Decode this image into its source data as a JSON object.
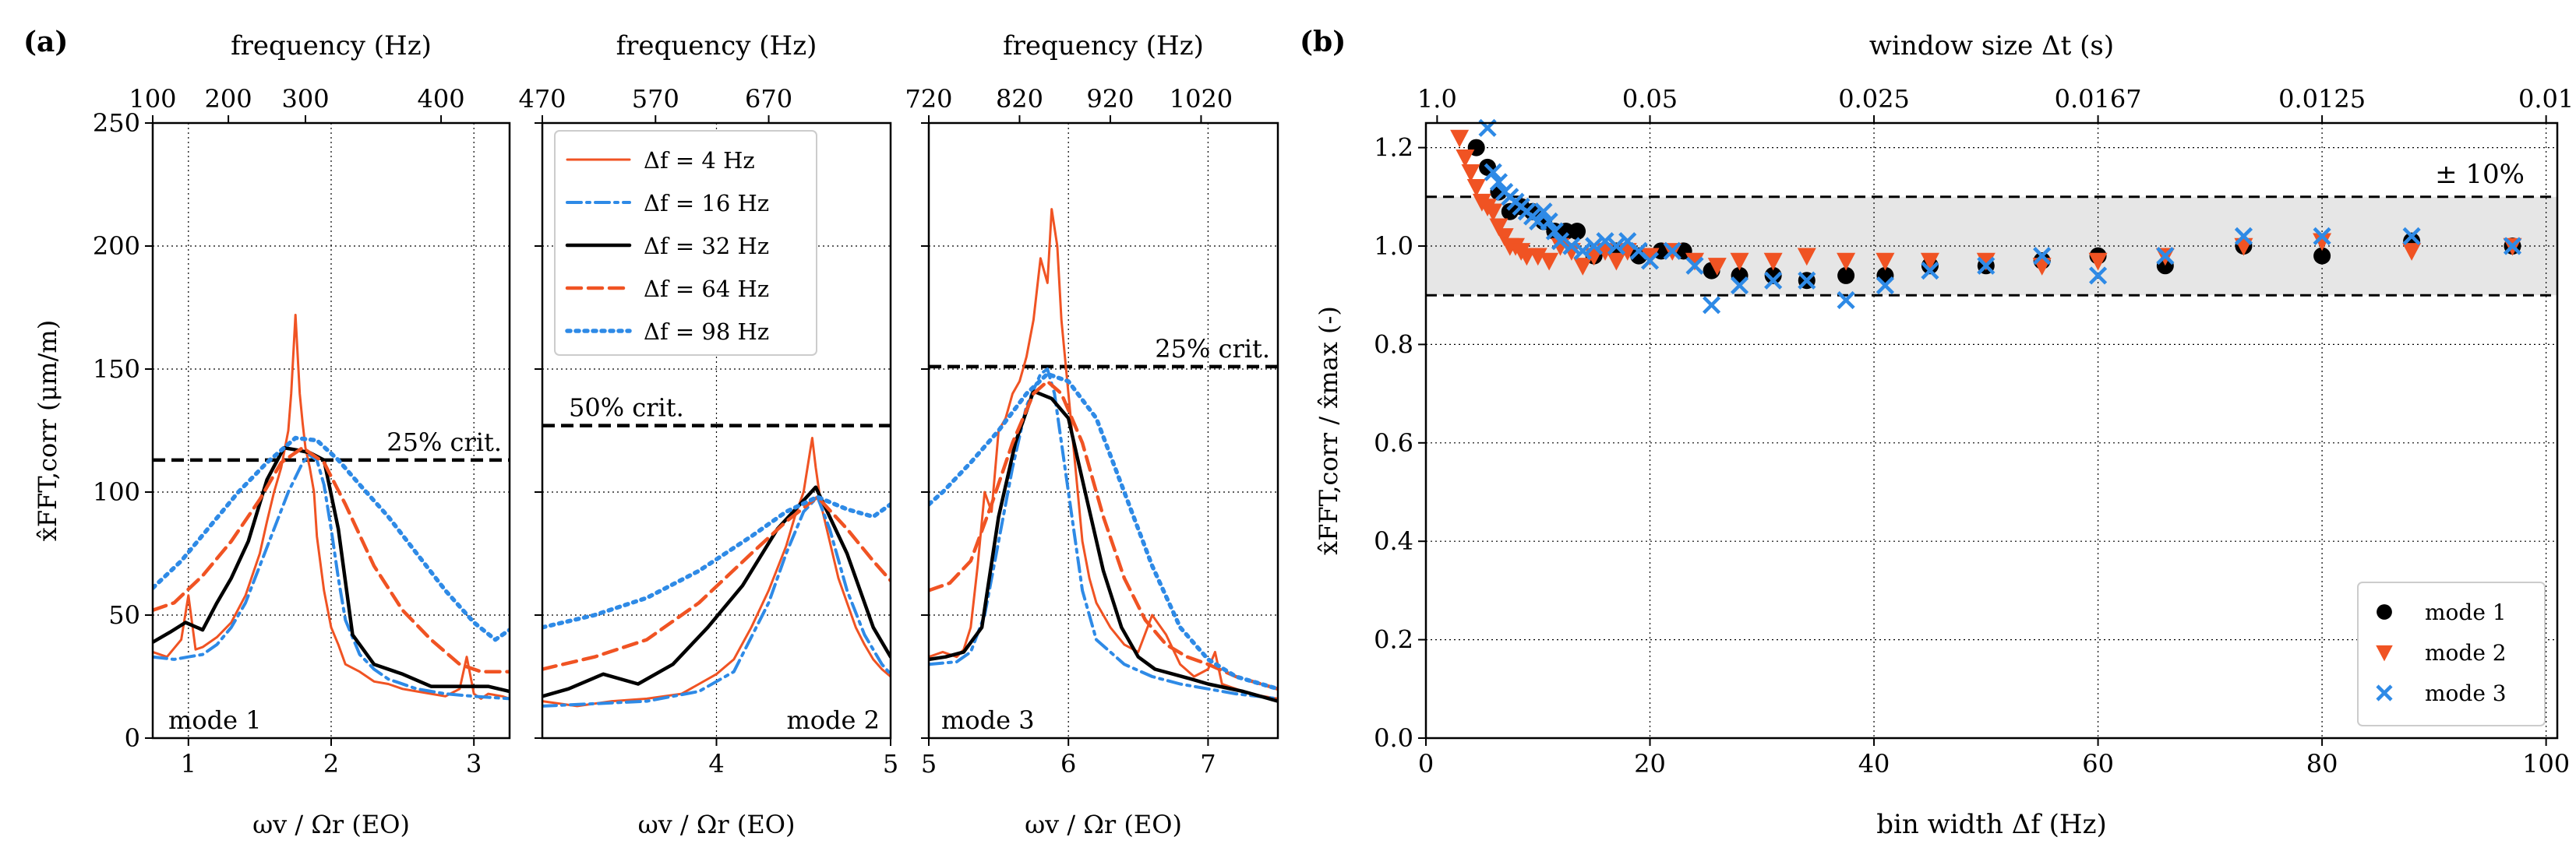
{
  "colors": {
    "black": "#000000",
    "orange": "#f05323",
    "blue": "#2e8ae6",
    "band": "#e6e6e6"
  },
  "panel_labels": {
    "a": "(a)",
    "b": "(b)"
  },
  "chart_data": [
    {
      "id": "mode1",
      "type": "line",
      "top_axis_label": "frequency (Hz)",
      "top_ticks": [
        {
          "label": "100",
          "x": 0.75
        },
        {
          "label": "200",
          "x": 1.28
        },
        {
          "label": "300",
          "x": 1.82
        },
        {
          "label": "400",
          "x": 2.77
        }
      ],
      "xlabel": "ωv / Ωr (EO)",
      "ylabel": "x̂FFT,corr (μm/m)",
      "xlim": [
        0.75,
        3.25
      ],
      "ylim": [
        0,
        250
      ],
      "xticks": [
        1,
        2,
        3
      ],
      "yticks": [
        0,
        50,
        100,
        150,
        200,
        250
      ],
      "grid": true,
      "threshold": {
        "y": 113,
        "label": "25% crit."
      },
      "mode_label": "mode 1",
      "series": [
        {
          "name": "Δf = 4 Hz",
          "style": "orange-solid",
          "x": [
            0.75,
            0.85,
            0.95,
            1.0,
            1.05,
            1.1,
            1.2,
            1.3,
            1.4,
            1.5,
            1.55,
            1.6,
            1.65,
            1.7,
            1.72,
            1.75,
            1.78,
            1.8,
            1.82,
            1.85,
            1.88,
            1.9,
            1.95,
            2.0,
            2.05,
            2.1,
            2.2,
            2.3,
            2.4,
            2.5,
            2.6,
            2.7,
            2.8,
            2.9,
            2.95,
            3.0,
            3.05,
            3.1,
            3.2,
            3.25
          ],
          "y": [
            35,
            33,
            40,
            58,
            36,
            37,
            41,
            47,
            58,
            75,
            88,
            100,
            110,
            125,
            140,
            172,
            140,
            128,
            118,
            110,
            100,
            82,
            60,
            45,
            38,
            30,
            27,
            23,
            22,
            20,
            19,
            18,
            17,
            20,
            33,
            18,
            16,
            18,
            17,
            16
          ]
        },
        {
          "name": "Δf = 16 Hz",
          "style": "blue-dashdot",
          "x": [
            0.75,
            0.9,
            1.0,
            1.1,
            1.2,
            1.3,
            1.4,
            1.5,
            1.6,
            1.7,
            1.8,
            1.85,
            1.9,
            1.95,
            2.0,
            2.05,
            2.1,
            2.2,
            2.3,
            2.4,
            2.6,
            2.8,
            3.0,
            3.25
          ],
          "y": [
            33,
            32,
            33,
            34,
            38,
            45,
            55,
            70,
            85,
            100,
            112,
            115,
            113,
            103,
            85,
            65,
            48,
            34,
            28,
            24,
            20,
            18,
            17,
            16
          ]
        },
        {
          "name": "Δf = 32 Hz",
          "style": "black-solid",
          "x": [
            0.75,
            0.87,
            0.98,
            1.1,
            1.2,
            1.3,
            1.42,
            1.55,
            1.67,
            1.77,
            1.85,
            1.95,
            2.05,
            2.15,
            2.3,
            2.5,
            2.7,
            2.9,
            3.1,
            3.25
          ],
          "y": [
            39,
            43,
            47,
            44,
            55,
            65,
            80,
            105,
            118,
            117,
            116,
            113,
            85,
            42,
            30,
            26,
            21,
            21,
            21,
            19
          ]
        },
        {
          "name": "Δf = 64 Hz",
          "style": "orange-dashed",
          "x": [
            0.75,
            0.9,
            1.1,
            1.3,
            1.5,
            1.65,
            1.8,
            1.95,
            2.1,
            2.3,
            2.5,
            2.7,
            2.9,
            3.05,
            3.25
          ],
          "y": [
            52,
            55,
            66,
            80,
            97,
            112,
            118,
            112,
            95,
            70,
            52,
            40,
            30,
            27,
            27
          ]
        },
        {
          "name": "Δf = 98 Hz",
          "style": "blue-dotted",
          "x": [
            0.75,
            0.95,
            1.15,
            1.35,
            1.55,
            1.75,
            1.9,
            2.05,
            2.2,
            2.4,
            2.6,
            2.8,
            3.0,
            3.15,
            3.25
          ],
          "y": [
            61,
            72,
            86,
            100,
            112,
            122,
            121,
            113,
            103,
            90,
            75,
            60,
            47,
            40,
            44
          ]
        }
      ]
    },
    {
      "id": "mode2",
      "type": "line",
      "top_axis_label": "frequency (Hz)",
      "top_ticks": [
        {
          "label": "470",
          "x": 3.0
        },
        {
          "label": "570",
          "x": 3.65
        },
        {
          "label": "670",
          "x": 4.3
        }
      ],
      "xlabel": "ωv / Ωr (EO)",
      "xlim": [
        3.0,
        5.0
      ],
      "ylim": [
        0,
        250
      ],
      "xticks": [
        4,
        5
      ],
      "grid": true,
      "threshold": {
        "y": 127,
        "label": "50% crit."
      },
      "mode_label": "mode 2",
      "series": [
        {
          "name": "Δf = 4 Hz",
          "style": "orange-solid",
          "x": [
            3.0,
            3.2,
            3.4,
            3.6,
            3.8,
            3.9,
            4.0,
            4.1,
            4.2,
            4.3,
            4.4,
            4.45,
            4.5,
            4.55,
            4.57,
            4.6,
            4.65,
            4.7,
            4.75,
            4.8,
            4.85,
            4.9,
            4.95,
            5.0
          ],
          "y": [
            15,
            13,
            15,
            16,
            18,
            22,
            26,
            32,
            45,
            60,
            78,
            90,
            100,
            122,
            110,
            95,
            80,
            65,
            55,
            45,
            38,
            32,
            28,
            25
          ]
        },
        {
          "name": "Δf = 16 Hz",
          "style": "blue-dashdot",
          "x": [
            3.0,
            3.3,
            3.6,
            3.9,
            4.1,
            4.3,
            4.4,
            4.5,
            4.58,
            4.65,
            4.75,
            4.85,
            4.95,
            5.0
          ],
          "y": [
            13,
            14,
            15,
            19,
            27,
            55,
            75,
            92,
            98,
            85,
            60,
            42,
            30,
            26
          ]
        },
        {
          "name": "Δf = 32 Hz",
          "style": "black-solid",
          "x": [
            3.0,
            3.15,
            3.35,
            3.55,
            3.75,
            3.95,
            4.15,
            4.35,
            4.57,
            4.75,
            4.9,
            5.0
          ],
          "y": [
            17,
            20,
            26,
            22,
            30,
            45,
            62,
            85,
            102,
            75,
            45,
            33
          ]
        },
        {
          "name": "Δf = 64 Hz",
          "style": "orange-dashed",
          "x": [
            3.0,
            3.3,
            3.6,
            3.9,
            4.2,
            4.4,
            4.58,
            4.75,
            4.9,
            5.0
          ],
          "y": [
            28,
            33,
            40,
            55,
            75,
            88,
            98,
            85,
            72,
            64
          ]
        },
        {
          "name": "Δf = 98 Hz",
          "style": "blue-dotted",
          "x": [
            3.0,
            3.3,
            3.6,
            3.9,
            4.2,
            4.4,
            4.58,
            4.75,
            4.9,
            5.0
          ],
          "y": [
            45,
            50,
            57,
            68,
            82,
            92,
            98,
            93,
            90,
            95
          ]
        }
      ]
    },
    {
      "id": "mode3",
      "type": "line",
      "top_axis_label": "frequency (Hz)",
      "top_ticks": [
        {
          "label": "720",
          "x": 5.0
        },
        {
          "label": "820",
          "x": 5.65
        },
        {
          "label": "920",
          "x": 6.3
        },
        {
          "label": "1020",
          "x": 6.95
        }
      ],
      "xlabel": "ωv / Ωr (EO)",
      "xlim": [
        5.0,
        7.5
      ],
      "ylim": [
        0,
        250
      ],
      "xticks": [
        5,
        6,
        7
      ],
      "grid": true,
      "threshold": {
        "y": 151,
        "label": "25% crit."
      },
      "mode_label": "mode 3",
      "series": [
        {
          "name": "Δf = 4 Hz",
          "style": "orange-solid",
          "x": [
            5.0,
            5.1,
            5.2,
            5.25,
            5.3,
            5.35,
            5.4,
            5.45,
            5.5,
            5.55,
            5.6,
            5.65,
            5.7,
            5.75,
            5.8,
            5.85,
            5.88,
            5.92,
            5.95,
            6.0,
            6.05,
            6.1,
            6.15,
            6.2,
            6.3,
            6.4,
            6.5,
            6.6,
            6.7,
            6.8,
            6.9,
            7.0,
            7.05,
            7.1,
            7.2,
            7.3,
            7.4,
            7.5
          ],
          "y": [
            33,
            35,
            33,
            36,
            45,
            70,
            100,
            92,
            125,
            130,
            140,
            145,
            155,
            170,
            195,
            185,
            215,
            200,
            170,
            140,
            110,
            80,
            65,
            55,
            45,
            38,
            35,
            50,
            42,
            30,
            25,
            28,
            35,
            22,
            20,
            18,
            17,
            16
          ]
        },
        {
          "name": "Δf = 16 Hz",
          "style": "blue-dashdot",
          "x": [
            5.0,
            5.2,
            5.3,
            5.4,
            5.5,
            5.6,
            5.7,
            5.8,
            5.85,
            5.9,
            6.0,
            6.1,
            6.2,
            6.4,
            6.6,
            6.8,
            7.0,
            7.2,
            7.5
          ],
          "y": [
            30,
            31,
            35,
            50,
            80,
            110,
            135,
            148,
            150,
            140,
            100,
            60,
            40,
            30,
            25,
            22,
            20,
            18,
            16
          ]
        },
        {
          "name": "Δf = 32 Hz",
          "style": "black-solid",
          "x": [
            5.0,
            5.12,
            5.25,
            5.38,
            5.5,
            5.62,
            5.75,
            5.88,
            6.0,
            6.12,
            6.25,
            6.38,
            6.5,
            6.62,
            6.75,
            6.88,
            7.0,
            7.25,
            7.5
          ],
          "y": [
            32,
            33,
            35,
            45,
            90,
            120,
            141,
            138,
            130,
            100,
            68,
            45,
            33,
            28,
            26,
            24,
            22,
            19,
            15
          ]
        },
        {
          "name": "Δf = 64 Hz",
          "style": "orange-dashed",
          "x": [
            5.0,
            5.15,
            5.3,
            5.45,
            5.6,
            5.75,
            5.85,
            5.95,
            6.1,
            6.25,
            6.4,
            6.55,
            6.7,
            6.85,
            7.0,
            7.2,
            7.5
          ],
          "y": [
            60,
            63,
            72,
            95,
            120,
            140,
            145,
            140,
            120,
            90,
            65,
            48,
            38,
            33,
            30,
            25,
            20
          ]
        },
        {
          "name": "Δf = 98 Hz",
          "style": "blue-dotted",
          "x": [
            5.0,
            5.1,
            5.3,
            5.5,
            5.7,
            5.85,
            6.0,
            6.2,
            6.4,
            6.6,
            6.8,
            7.0,
            7.2,
            7.5
          ],
          "y": [
            95,
            100,
            112,
            125,
            140,
            148,
            145,
            130,
            100,
            70,
            45,
            32,
            25,
            20
          ]
        }
      ]
    },
    {
      "id": "convergence",
      "type": "scatter",
      "top_axis_label": "window size Δt (s)",
      "top_ticks": [
        {
          "label": "1.0",
          "x": 1
        },
        {
          "label": "0.05",
          "x": 20
        },
        {
          "label": "0.025",
          "x": 40
        },
        {
          "label": "0.0167",
          "x": 60
        },
        {
          "label": "0.0125",
          "x": 80
        },
        {
          "label": "0.01",
          "x": 100
        }
      ],
      "xlabel": "bin width Δf (Hz)",
      "ylabel": "x̂FFT,corr / x̂max (-)",
      "xlim": [
        0,
        101
      ],
      "ylim": [
        0,
        1.25
      ],
      "xticks": [
        0,
        20,
        40,
        60,
        80,
        100
      ],
      "yticks": [
        0.0,
        0.2,
        0.4,
        0.6,
        0.8,
        1.0,
        1.2
      ],
      "grid": true,
      "band": {
        "low": 0.9,
        "high": 1.1,
        "label": "± 10%"
      },
      "legend": "bottom-right",
      "series": [
        {
          "name": "mode 1",
          "marker": "circle",
          "x": [
            4.5,
            5.5,
            6.5,
            7.5,
            8.5,
            9.5,
            10.5,
            11.5,
            12.5,
            13.5,
            15,
            17,
            19,
            21,
            23,
            25.5,
            28,
            31,
            34,
            37.5,
            41,
            45,
            50,
            55,
            60,
            66,
            73,
            80,
            88,
            97
          ],
          "y": [
            1.2,
            1.16,
            1.11,
            1.07,
            1.08,
            1.07,
            1.05,
            1.03,
            1.03,
            1.03,
            0.98,
            0.99,
            0.98,
            0.99,
            0.99,
            0.95,
            0.94,
            0.94,
            0.93,
            0.94,
            0.94,
            0.96,
            0.96,
            0.97,
            0.98,
            0.96,
            1.0,
            0.98,
            1.01,
            1.0
          ]
        },
        {
          "name": "mode 2",
          "marker": "triangle-down",
          "x": [
            3,
            3.5,
            4,
            4.5,
            5,
            5.5,
            6,
            6.5,
            7,
            7.5,
            8,
            8.5,
            9,
            10,
            11,
            12,
            13,
            14,
            15,
            16,
            17,
            18,
            20,
            22,
            24,
            26,
            28,
            31,
            34,
            37.5,
            41,
            45,
            50,
            55,
            60,
            66,
            73,
            80,
            88,
            97
          ],
          "y": [
            1.22,
            1.18,
            1.15,
            1.12,
            1.09,
            1.08,
            1.07,
            1.04,
            1.02,
            1.0,
            1.0,
            0.99,
            0.98,
            0.98,
            0.97,
            1.0,
            0.99,
            0.96,
            0.98,
            0.99,
            0.97,
            0.99,
            0.98,
            0.99,
            0.97,
            0.96,
            0.97,
            0.97,
            0.98,
            0.97,
            0.97,
            0.97,
            0.97,
            0.96,
            0.97,
            0.98,
            1.0,
            1.01,
            0.99,
            1.0
          ]
        },
        {
          "name": "mode 3",
          "marker": "x",
          "x": [
            5.5,
            6,
            6.5,
            7,
            7.5,
            8,
            8.5,
            9,
            9.5,
            10,
            10.5,
            11,
            11.5,
            12,
            13,
            14,
            15,
            16,
            17,
            18,
            19,
            20,
            22,
            24,
            25.5,
            28,
            31,
            34,
            37.5,
            41,
            45,
            50,
            55,
            60,
            66,
            73,
            80,
            88,
            97
          ],
          "y": [
            1.24,
            1.15,
            1.13,
            1.11,
            1.1,
            1.09,
            1.08,
            1.07,
            1.06,
            1.05,
            1.07,
            1.05,
            1.03,
            1.01,
            1.0,
            0.99,
            1.0,
            1.01,
            1.0,
            1.01,
            0.99,
            0.97,
            0.99,
            0.96,
            0.88,
            0.92,
            0.93,
            0.93,
            0.89,
            0.92,
            0.95,
            0.96,
            0.98,
            0.94,
            0.98,
            1.02,
            1.02,
            1.02,
            1.0
          ]
        }
      ]
    }
  ]
}
